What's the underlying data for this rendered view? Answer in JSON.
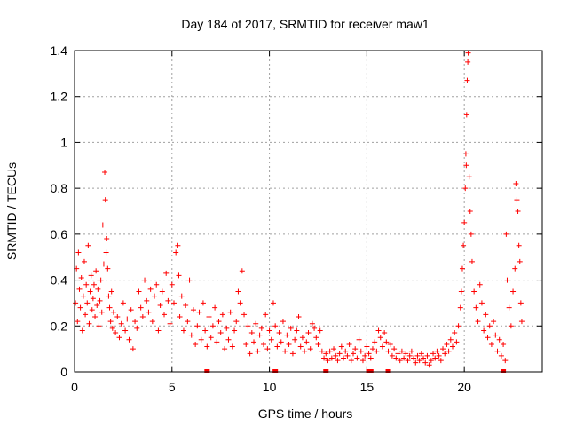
{
  "chart_data": {
    "type": "scatter",
    "title": "Day 184 of 2017, SRMTID for receiver maw1",
    "xlabel": "GPS time / hours",
    "ylabel": "SRMTID / TECUs",
    "xlim": [
      0,
      24
    ],
    "ylim": [
      0,
      1.4
    ],
    "grid": true,
    "marker": "+",
    "series_color": "#ff0000",
    "xticks": [
      {
        "value": 0,
        "label": "0"
      },
      {
        "value": 5,
        "label": "5"
      },
      {
        "value": 10,
        "label": "10"
      },
      {
        "value": 15,
        "label": "15"
      },
      {
        "value": 20,
        "label": "20"
      }
    ],
    "yticks": [
      {
        "value": 0,
        "label": "0"
      },
      {
        "value": 0.2,
        "label": "0.2"
      },
      {
        "value": 0.4,
        "label": "0.4"
      },
      {
        "value": 0.6,
        "label": "0.6"
      },
      {
        "value": 0.8,
        "label": "0.8"
      },
      {
        "value": 1.0,
        "label": "1"
      },
      {
        "value": 1.2,
        "label": "1.2"
      },
      {
        "value": 1.4,
        "label": "1.4"
      }
    ],
    "baseline_markers": [
      6.8,
      10.3,
      12.9,
      15.1,
      15.2,
      16.1,
      22.0
    ],
    "series": [
      {
        "name": "SRMTID",
        "points": [
          [
            0.05,
            0.3
          ],
          [
            0.1,
            0.45
          ],
          [
            0.15,
            0.22
          ],
          [
            0.2,
            0.52
          ],
          [
            0.25,
            0.36
          ],
          [
            0.3,
            0.28
          ],
          [
            0.35,
            0.41
          ],
          [
            0.4,
            0.18
          ],
          [
            0.45,
            0.33
          ],
          [
            0.5,
            0.48
          ],
          [
            0.55,
            0.25
          ],
          [
            0.6,
            0.38
          ],
          [
            0.65,
            0.3
          ],
          [
            0.7,
            0.55
          ],
          [
            0.75,
            0.21
          ],
          [
            0.8,
            0.35
          ],
          [
            0.85,
            0.42
          ],
          [
            0.9,
            0.27
          ],
          [
            0.95,
            0.32
          ],
          [
            1.0,
            0.38
          ],
          [
            1.05,
            0.24
          ],
          [
            1.1,
            0.44
          ],
          [
            1.15,
            0.29
          ],
          [
            1.2,
            0.36
          ],
          [
            1.25,
            0.2
          ],
          [
            1.3,
            0.31
          ],
          [
            1.35,
            0.4
          ],
          [
            1.4,
            0.26
          ],
          [
            1.45,
            0.64
          ],
          [
            1.5,
            0.47
          ],
          [
            1.55,
            0.87
          ],
          [
            1.58,
            0.75
          ],
          [
            1.62,
            0.52
          ],
          [
            1.65,
            0.58
          ],
          [
            1.7,
            0.45
          ],
          [
            1.75,
            0.33
          ],
          [
            1.8,
            0.28
          ],
          [
            1.85,
            0.22
          ],
          [
            1.9,
            0.35
          ],
          [
            1.95,
            0.19
          ],
          [
            2.0,
            0.26
          ],
          [
            2.1,
            0.17
          ],
          [
            2.2,
            0.24
          ],
          [
            2.3,
            0.15
          ],
          [
            2.4,
            0.21
          ],
          [
            2.5,
            0.3
          ],
          [
            2.6,
            0.18
          ],
          [
            2.7,
            0.23
          ],
          [
            2.8,
            0.14
          ],
          [
            2.9,
            0.27
          ],
          [
            3.0,
            0.1
          ],
          [
            3.1,
            0.22
          ],
          [
            3.2,
            0.19
          ],
          [
            3.3,
            0.35
          ],
          [
            3.4,
            0.28
          ],
          [
            3.5,
            0.24
          ],
          [
            3.6,
            0.4
          ],
          [
            3.7,
            0.31
          ],
          [
            3.8,
            0.26
          ],
          [
            3.9,
            0.36
          ],
          [
            4.0,
            0.22
          ],
          [
            4.1,
            0.33
          ],
          [
            4.2,
            0.38
          ],
          [
            4.3,
            0.18
          ],
          [
            4.4,
            0.29
          ],
          [
            4.5,
            0.35
          ],
          [
            4.6,
            0.25
          ],
          [
            4.7,
            0.43
          ],
          [
            4.8,
            0.31
          ],
          [
            4.9,
            0.21
          ],
          [
            5.0,
            0.38
          ],
          [
            5.1,
            0.3
          ],
          [
            5.2,
            0.52
          ],
          [
            5.3,
            0.55
          ],
          [
            5.35,
            0.42
          ],
          [
            5.4,
            0.24
          ],
          [
            5.5,
            0.33
          ],
          [
            5.6,
            0.18
          ],
          [
            5.7,
            0.29
          ],
          [
            5.8,
            0.22
          ],
          [
            5.9,
            0.4
          ],
          [
            6.0,
            0.16
          ],
          [
            6.1,
            0.27
          ],
          [
            6.2,
            0.12
          ],
          [
            6.3,
            0.2
          ],
          [
            6.4,
            0.26
          ],
          [
            6.5,
            0.14
          ],
          [
            6.6,
            0.3
          ],
          [
            6.7,
            0.18
          ],
          [
            6.8,
            0.11
          ],
          [
            6.9,
            0.24
          ],
          [
            7.0,
            0.15
          ],
          [
            7.1,
            0.2
          ],
          [
            7.2,
            0.28
          ],
          [
            7.3,
            0.13
          ],
          [
            7.4,
            0.22
          ],
          [
            7.5,
            0.17
          ],
          [
            7.6,
            0.25
          ],
          [
            7.7,
            0.1
          ],
          [
            7.8,
            0.19
          ],
          [
            7.9,
            0.14
          ],
          [
            8.0,
            0.26
          ],
          [
            8.1,
            0.11
          ],
          [
            8.2,
            0.18
          ],
          [
            8.3,
            0.22
          ],
          [
            8.4,
            0.35
          ],
          [
            8.5,
            0.3
          ],
          [
            8.6,
            0.44
          ],
          [
            8.7,
            0.25
          ],
          [
            8.8,
            0.12
          ],
          [
            8.9,
            0.2
          ],
          [
            9.0,
            0.08
          ],
          [
            9.1,
            0.17
          ],
          [
            9.2,
            0.13
          ],
          [
            9.3,
            0.21
          ],
          [
            9.4,
            0.09
          ],
          [
            9.5,
            0.16
          ],
          [
            9.6,
            0.19
          ],
          [
            9.7,
            0.12
          ],
          [
            9.8,
            0.25
          ],
          [
            9.9,
            0.1
          ],
          [
            10.0,
            0.18
          ],
          [
            10.1,
            0.14
          ],
          [
            10.2,
            0.3
          ],
          [
            10.3,
            0.2
          ],
          [
            10.4,
            0.11
          ],
          [
            10.5,
            0.17
          ],
          [
            10.6,
            0.13
          ],
          [
            10.7,
            0.22
          ],
          [
            10.8,
            0.09
          ],
          [
            10.9,
            0.16
          ],
          [
            11.0,
            0.12
          ],
          [
            11.1,
            0.19
          ],
          [
            11.2,
            0.08
          ],
          [
            11.3,
            0.14
          ],
          [
            11.4,
            0.18
          ],
          [
            11.5,
            0.24
          ],
          [
            11.6,
            0.11
          ],
          [
            11.7,
            0.15
          ],
          [
            11.8,
            0.09
          ],
          [
            11.9,
            0.13
          ],
          [
            12.0,
            0.17
          ],
          [
            12.1,
            0.1
          ],
          [
            12.2,
            0.21
          ],
          [
            12.3,
            0.19
          ],
          [
            12.4,
            0.15
          ],
          [
            12.5,
            0.12
          ],
          [
            12.6,
            0.18
          ],
          [
            12.7,
            0.09
          ],
          [
            12.8,
            0.06
          ],
          [
            12.9,
            0.08
          ],
          [
            13.0,
            0.05
          ],
          [
            13.1,
            0.09
          ],
          [
            13.2,
            0.06
          ],
          [
            13.3,
            0.1
          ],
          [
            13.4,
            0.07
          ],
          [
            13.5,
            0.05
          ],
          [
            13.6,
            0.08
          ],
          [
            13.7,
            0.11
          ],
          [
            13.8,
            0.06
          ],
          [
            13.9,
            0.09
          ],
          [
            14.0,
            0.07
          ],
          [
            14.1,
            0.12
          ],
          [
            14.2,
            0.05
          ],
          [
            14.3,
            0.08
          ],
          [
            14.4,
            0.1
          ],
          [
            14.5,
            0.06
          ],
          [
            14.6,
            0.14
          ],
          [
            14.7,
            0.09
          ],
          [
            14.8,
            0.05
          ],
          [
            14.9,
            0.07
          ],
          [
            15.0,
            0.11
          ],
          [
            15.1,
            0.08
          ],
          [
            15.2,
            0.06
          ],
          [
            15.3,
            0.1
          ],
          [
            15.4,
            0.13
          ],
          [
            15.5,
            0.09
          ],
          [
            15.6,
            0.18
          ],
          [
            15.7,
            0.15
          ],
          [
            15.8,
            0.11
          ],
          [
            15.9,
            0.17
          ],
          [
            16.0,
            0.13
          ],
          [
            16.1,
            0.09
          ],
          [
            16.2,
            0.12
          ],
          [
            16.3,
            0.07
          ],
          [
            16.4,
            0.1
          ],
          [
            16.5,
            0.06
          ],
          [
            16.6,
            0.08
          ],
          [
            16.7,
            0.05
          ],
          [
            16.8,
            0.09
          ],
          [
            16.9,
            0.06
          ],
          [
            17.0,
            0.08
          ],
          [
            17.1,
            0.05
          ],
          [
            17.2,
            0.07
          ],
          [
            17.3,
            0.09
          ],
          [
            17.4,
            0.06
          ],
          [
            17.5,
            0.04
          ],
          [
            17.6,
            0.07
          ],
          [
            17.7,
            0.05
          ],
          [
            17.8,
            0.08
          ],
          [
            17.9,
            0.06
          ],
          [
            18.0,
            0.04
          ],
          [
            18.1,
            0.07
          ],
          [
            18.2,
            0.03
          ],
          [
            18.3,
            0.05
          ],
          [
            18.4,
            0.08
          ],
          [
            18.5,
            0.06
          ],
          [
            18.6,
            0.09
          ],
          [
            18.7,
            0.07
          ],
          [
            18.8,
            0.05
          ],
          [
            18.9,
            0.1
          ],
          [
            19.0,
            0.08
          ],
          [
            19.1,
            0.12
          ],
          [
            19.2,
            0.09
          ],
          [
            19.3,
            0.14
          ],
          [
            19.4,
            0.11
          ],
          [
            19.5,
            0.17
          ],
          [
            19.6,
            0.13
          ],
          [
            19.7,
            0.2
          ],
          [
            19.8,
            0.28
          ],
          [
            19.85,
            0.35
          ],
          [
            19.9,
            0.45
          ],
          [
            19.95,
            0.55
          ],
          [
            20.0,
            0.65
          ],
          [
            20.05,
            0.8
          ],
          [
            20.08,
            0.95
          ],
          [
            20.1,
            0.9
          ],
          [
            20.12,
            1.12
          ],
          [
            20.15,
            1.27
          ],
          [
            20.18,
            1.35
          ],
          [
            20.2,
            1.39
          ],
          [
            20.25,
            0.85
          ],
          [
            20.3,
            0.7
          ],
          [
            20.35,
            0.6
          ],
          [
            20.4,
            0.48
          ],
          [
            20.5,
            0.35
          ],
          [
            20.6,
            0.28
          ],
          [
            20.7,
            0.22
          ],
          [
            20.8,
            0.38
          ],
          [
            20.9,
            0.3
          ],
          [
            21.0,
            0.18
          ],
          [
            21.1,
            0.25
          ],
          [
            21.2,
            0.15
          ],
          [
            21.3,
            0.2
          ],
          [
            21.4,
            0.12
          ],
          [
            21.5,
            0.22
          ],
          [
            21.6,
            0.16
          ],
          [
            21.7,
            0.09
          ],
          [
            21.8,
            0.14
          ],
          [
            21.9,
            0.07
          ],
          [
            22.0,
            0.12
          ],
          [
            22.1,
            0.05
          ],
          [
            22.15,
            0.6
          ],
          [
            22.2,
            0.4
          ],
          [
            22.3,
            0.28
          ],
          [
            22.4,
            0.2
          ],
          [
            22.5,
            0.35
          ],
          [
            22.6,
            0.45
          ],
          [
            22.65,
            0.82
          ],
          [
            22.7,
            0.75
          ],
          [
            22.75,
            0.7
          ],
          [
            22.8,
            0.55
          ],
          [
            22.85,
            0.48
          ],
          [
            22.9,
            0.3
          ],
          [
            22.95,
            0.22
          ]
        ]
      }
    ]
  }
}
